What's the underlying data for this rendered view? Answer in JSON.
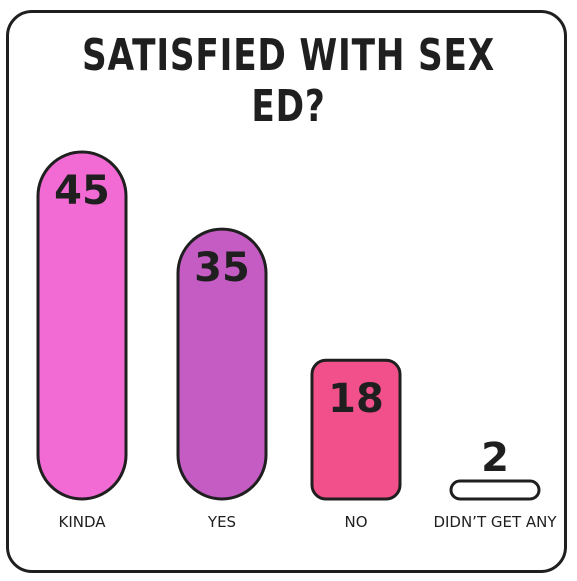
{
  "chart_data": {
    "type": "bar",
    "title": "SATISFIED WITH SEX ED?",
    "categories": [
      "KINDA",
      "YES",
      "NO",
      "DIDN’T GET ANY"
    ],
    "values": [
      45,
      35,
      18,
      2
    ],
    "colors": [
      "#f26bd4",
      "#c45cc4",
      "#f2508a",
      "#ffffff"
    ],
    "ylim": [
      0,
      45
    ],
    "grid": false,
    "legend": "none"
  }
}
